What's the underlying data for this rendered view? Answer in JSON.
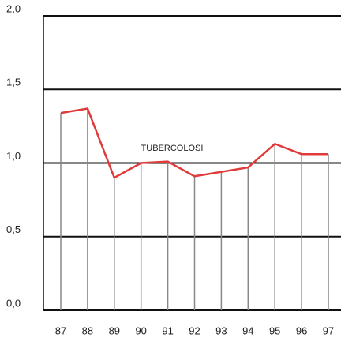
{
  "chart_data": {
    "type": "line",
    "annotation": "TUBERCOLOSI",
    "categories": [
      "87",
      "88",
      "89",
      "90",
      "91",
      "92",
      "93",
      "94",
      "95",
      "96",
      "97"
    ],
    "series": [
      {
        "color": "#e03a3a",
        "values": [
          1.34,
          1.37,
          0.9,
          1.0,
          1.01,
          0.91,
          0.94,
          0.97,
          1.13,
          1.06,
          1.06
        ]
      }
    ],
    "ylim": [
      0,
      2
    ],
    "yticks": [
      {
        "value": 0,
        "label": "0,0"
      },
      {
        "value": 0.5,
        "label": "0,5"
      },
      {
        "value": 1,
        "label": "1,0"
      },
      {
        "value": 1.5,
        "label": "1,5"
      },
      {
        "value": 2,
        "label": "2,0"
      }
    ],
    "grid": true
  }
}
